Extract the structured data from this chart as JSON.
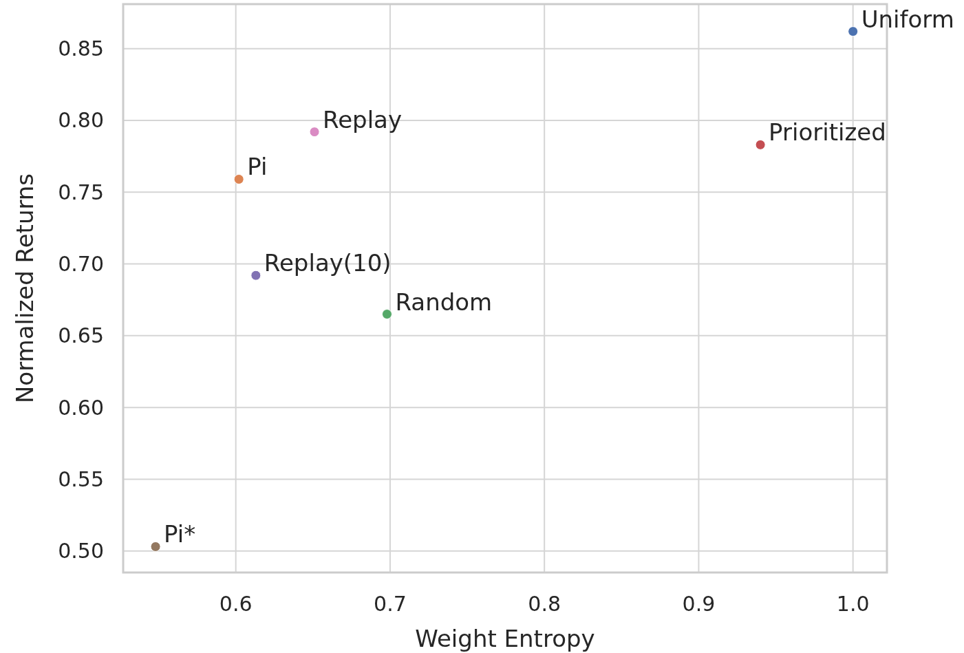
{
  "chart_data": {
    "type": "scatter",
    "xlabel": "Weight Entropy",
    "ylabel": "Normalized Returns",
    "xlim": [
      0.527,
      1.022
    ],
    "ylim": [
      0.485,
      0.881
    ],
    "xticks": [
      {
        "value": 0.6,
        "label": "0.6"
      },
      {
        "value": 0.7,
        "label": "0.7"
      },
      {
        "value": 0.8,
        "label": "0.8"
      },
      {
        "value": 0.9,
        "label": "0.9"
      },
      {
        "value": 1.0,
        "label": "1.0"
      }
    ],
    "yticks": [
      {
        "value": 0.5,
        "label": "0.50"
      },
      {
        "value": 0.55,
        "label": "0.55"
      },
      {
        "value": 0.6,
        "label": "0.60"
      },
      {
        "value": 0.65,
        "label": "0.65"
      },
      {
        "value": 0.7,
        "label": "0.70"
      },
      {
        "value": 0.75,
        "label": "0.75"
      },
      {
        "value": 0.8,
        "label": "0.80"
      },
      {
        "value": 0.85,
        "label": "0.85"
      }
    ],
    "grid": true,
    "marker": "circle",
    "series": [
      {
        "name": "Uniform",
        "color": "#4c72b0",
        "x": [
          1.0
        ],
        "values": [
          0.862
        ]
      },
      {
        "name": "Pi",
        "color": "#dd8452",
        "x": [
          0.602
        ],
        "values": [
          0.759
        ]
      },
      {
        "name": "Random",
        "color": "#55a868",
        "x": [
          0.698
        ],
        "values": [
          0.665
        ]
      },
      {
        "name": "Prioritized",
        "color": "#c44e52",
        "x": [
          0.94
        ],
        "values": [
          0.783
        ]
      },
      {
        "name": "Replay(10)",
        "color": "#8172b3",
        "x": [
          0.613
        ],
        "values": [
          0.692
        ]
      },
      {
        "name": "Pi*",
        "color": "#937860",
        "x": [
          0.548
        ],
        "values": [
          0.503
        ]
      },
      {
        "name": "Replay",
        "color": "#da8bc3",
        "x": [
          0.651
        ],
        "values": [
          0.792
        ]
      }
    ]
  }
}
